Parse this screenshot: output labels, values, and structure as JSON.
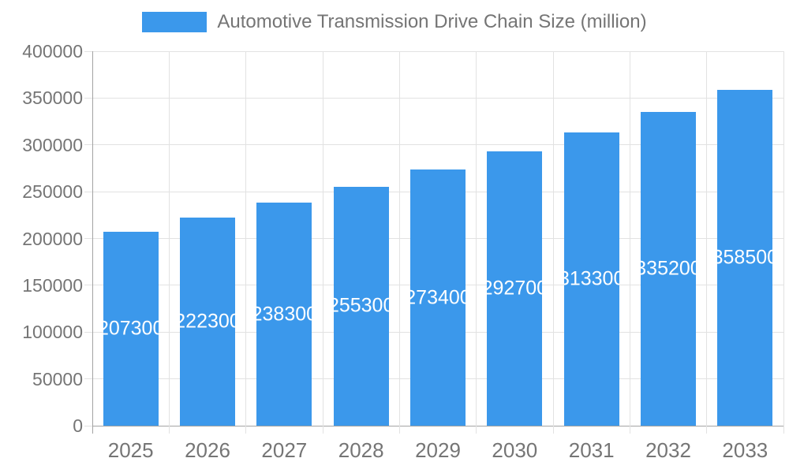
{
  "chart_data": {
    "type": "bar",
    "title": "Automotive Transmission Drive Chain Size (million)",
    "legend": [
      "Automotive Transmission Drive Chain Size (million)"
    ],
    "legend_position": "top",
    "categories": [
      "2025",
      "2026",
      "2027",
      "2028",
      "2029",
      "2030",
      "2031",
      "2032",
      "2033"
    ],
    "values": [
      207300,
      222300,
      238300,
      255300,
      273400,
      292700,
      313300,
      335200,
      358500
    ],
    "xlabel": "",
    "ylabel": "",
    "ylim": [
      0,
      400000
    ],
    "y_ticks": [
      0,
      50000,
      100000,
      150000,
      200000,
      250000,
      300000,
      350000,
      400000
    ],
    "grid": true,
    "colors": {
      "bar": "#3B98EB",
      "bar_value_text": "#FFFFFF",
      "axis_text": "#757575",
      "grid_line": "#E2E2E2",
      "axis_line": "#A3A3A3",
      "background": "#FFFFFF"
    }
  }
}
